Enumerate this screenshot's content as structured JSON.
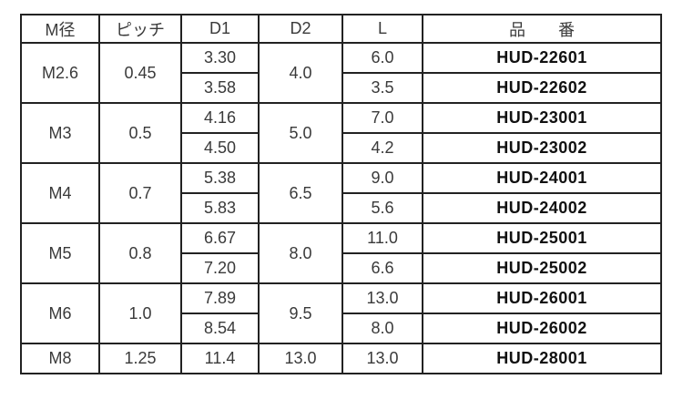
{
  "table": {
    "headers": [
      {
        "key": "m_dia",
        "label": "M径"
      },
      {
        "key": "pitch",
        "label": "ピッチ"
      },
      {
        "key": "d1",
        "label": "D1"
      },
      {
        "key": "d2",
        "label": "D2"
      },
      {
        "key": "l",
        "label": "L"
      },
      {
        "key": "part_no",
        "label": "品　番"
      }
    ],
    "groups": [
      {
        "m_dia": "M2.6",
        "pitch": "0.45",
        "d2": "4.0",
        "rows": [
          {
            "d1": "3.30",
            "l": "6.0",
            "part_no": "HUD-22601"
          },
          {
            "d1": "3.58",
            "l": "3.5",
            "part_no": "HUD-22602"
          }
        ]
      },
      {
        "m_dia": "M3",
        "pitch": "0.5",
        "d2": "5.0",
        "rows": [
          {
            "d1": "4.16",
            "l": "7.0",
            "part_no": "HUD-23001"
          },
          {
            "d1": "4.50",
            "l": "4.2",
            "part_no": "HUD-23002"
          }
        ]
      },
      {
        "m_dia": "M4",
        "pitch": "0.7",
        "d2": "6.5",
        "rows": [
          {
            "d1": "5.38",
            "l": "9.0",
            "part_no": "HUD-24001"
          },
          {
            "d1": "5.83",
            "l": "5.6",
            "part_no": "HUD-24002"
          }
        ]
      },
      {
        "m_dia": "M5",
        "pitch": "0.8",
        "d2": "8.0",
        "rows": [
          {
            "d1": "6.67",
            "l": "11.0",
            "part_no": "HUD-25001"
          },
          {
            "d1": "7.20",
            "l": "6.6",
            "part_no": "HUD-25002"
          }
        ]
      },
      {
        "m_dia": "M6",
        "pitch": "1.0",
        "d2": "9.5",
        "rows": [
          {
            "d1": "7.89",
            "l": "13.0",
            "part_no": "HUD-26001"
          },
          {
            "d1": "8.54",
            "l": "8.0",
            "part_no": "HUD-26002"
          }
        ]
      },
      {
        "m_dia": "M8",
        "pitch": "1.25",
        "d2": "13.0",
        "rows": [
          {
            "d1": "11.4",
            "l": "13.0",
            "part_no": "HUD-28001"
          }
        ]
      }
    ]
  },
  "colors": {
    "border": "#222222",
    "text": "#3a3a3a",
    "part_number_text": "#111111",
    "background": "#ffffff"
  }
}
